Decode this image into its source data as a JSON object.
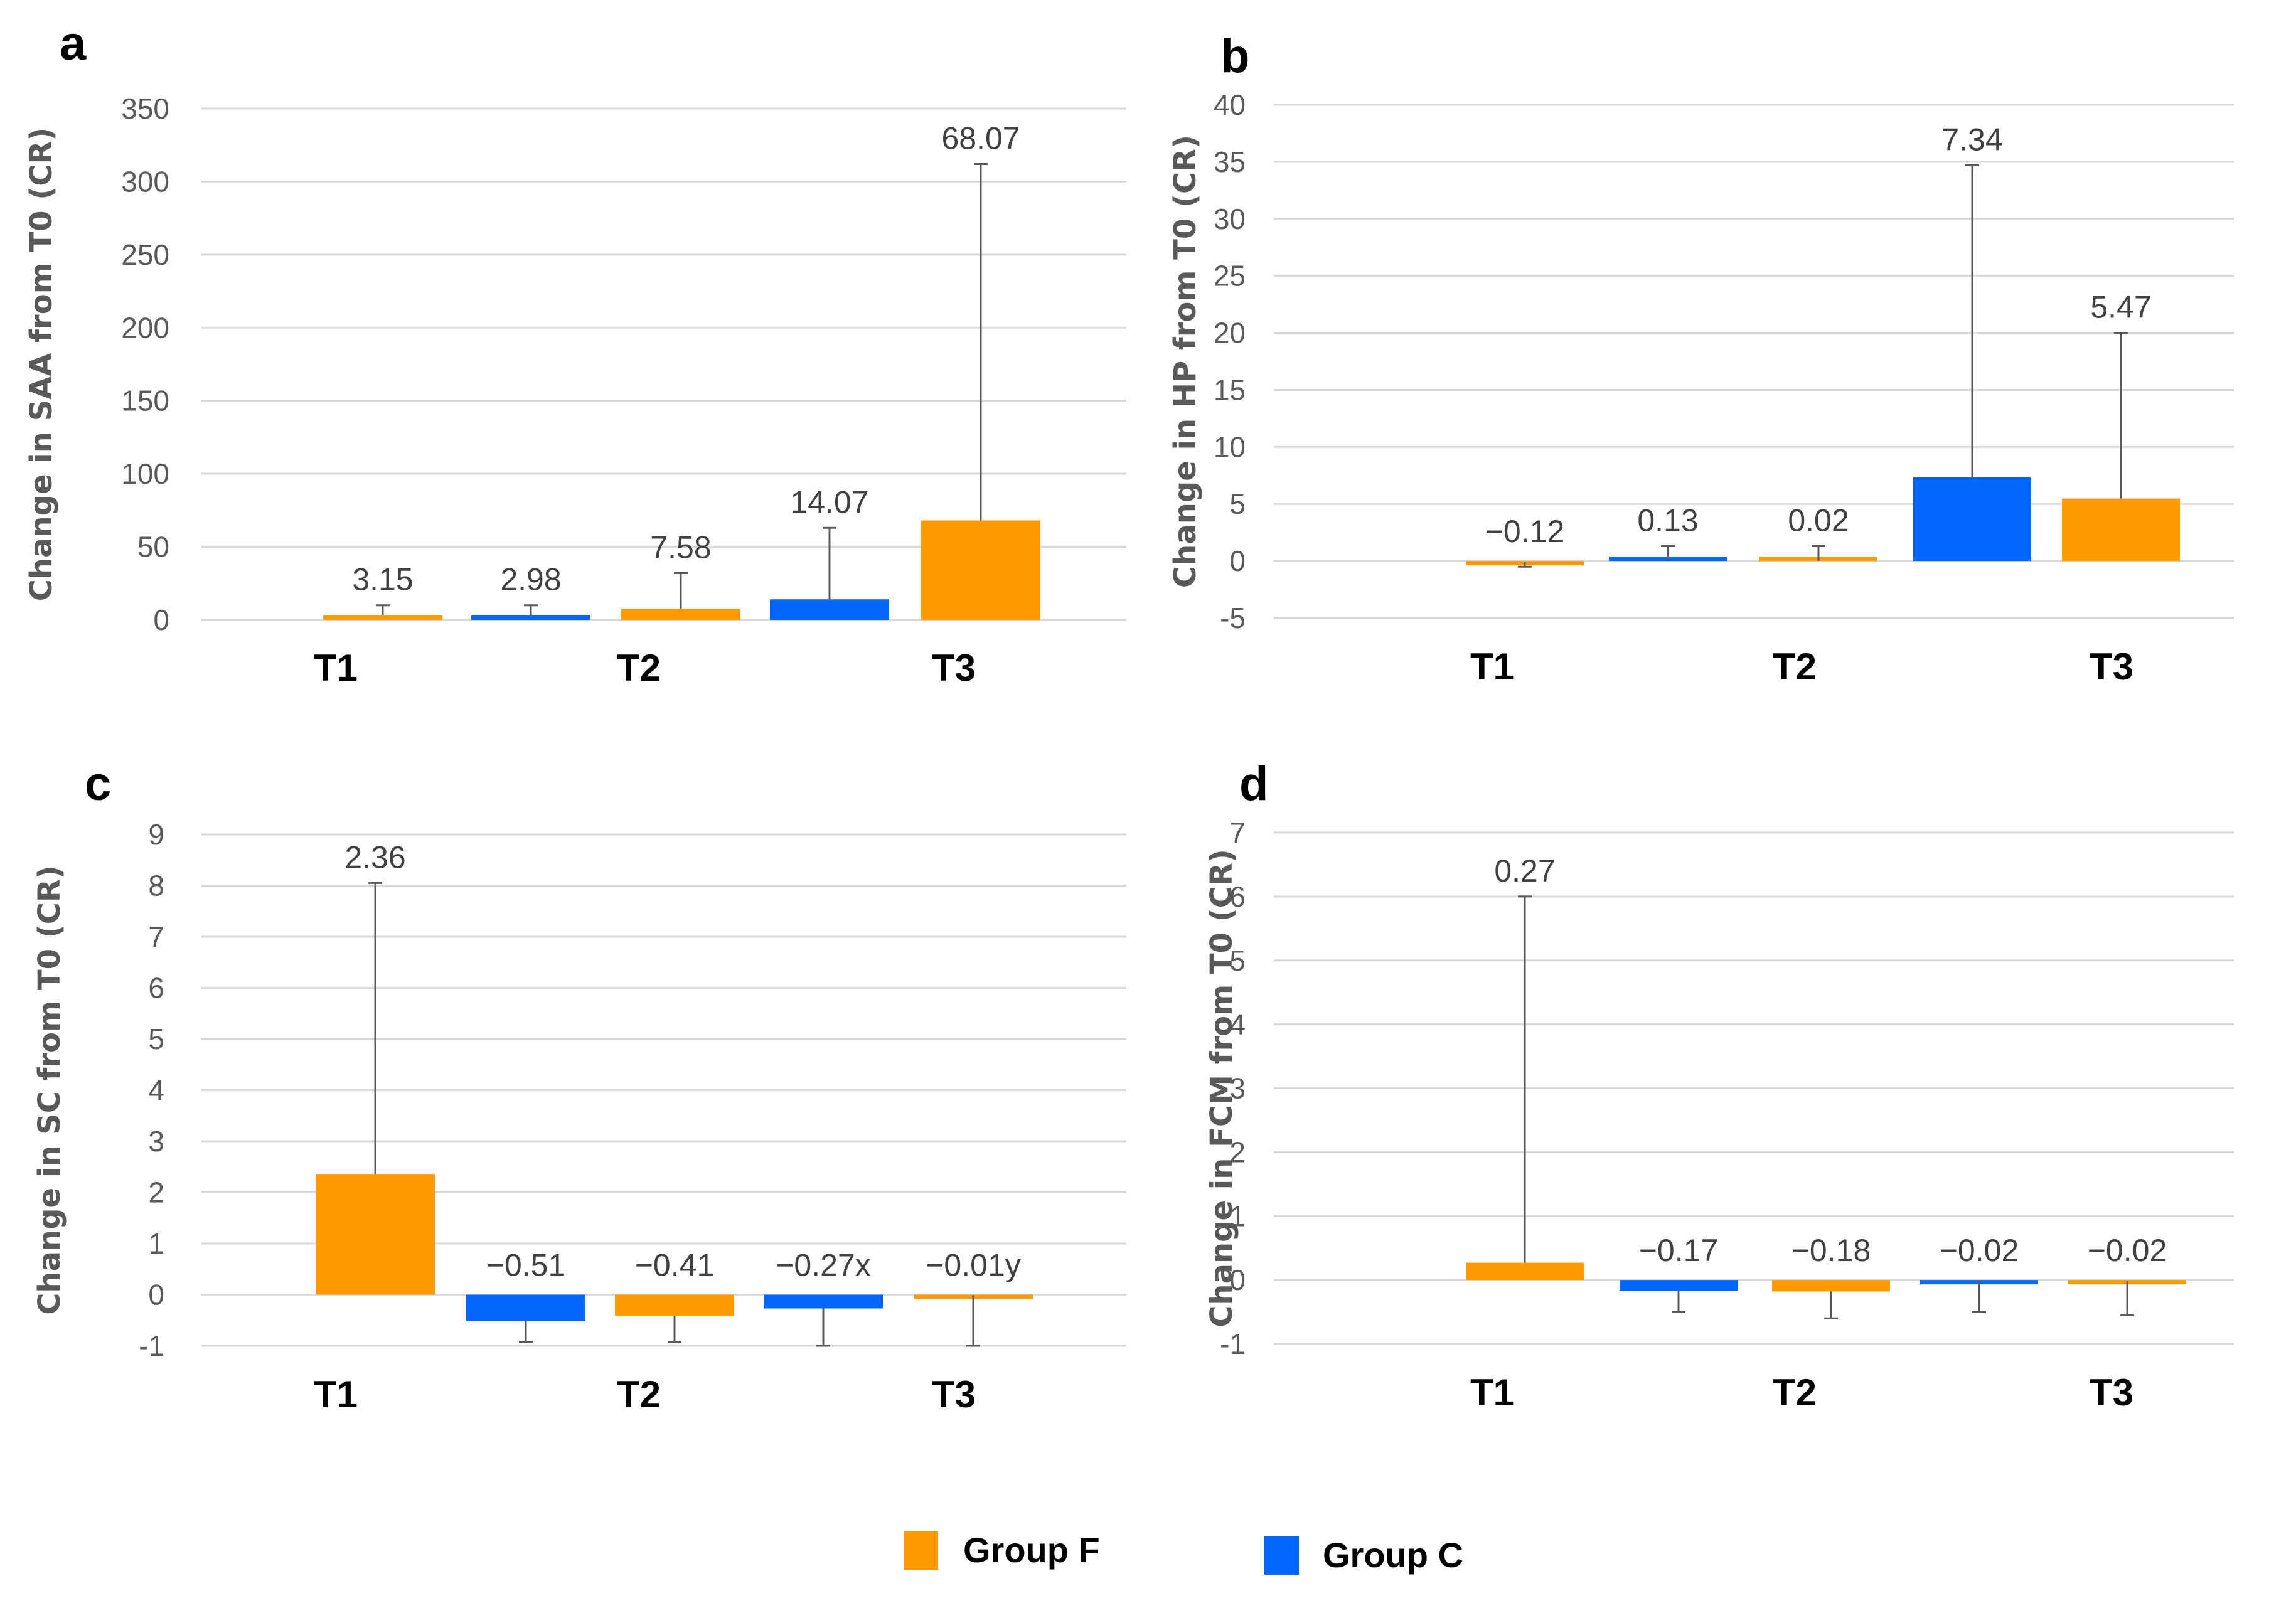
{
  "colors": {
    "group_f": "#ff9900",
    "group_c": "#0066ff"
  },
  "legend": [
    {
      "name": "Group F",
      "color": "#ff9900"
    },
    {
      "name": "Group C",
      "color": "#0066ff"
    }
  ],
  "chart_data": [
    {
      "panel": "a",
      "type": "bar",
      "ylabel": "Change in SAA from T0  (CR)",
      "categories": [
        "T1",
        "T2",
        "T3"
      ],
      "yticks": [
        0,
        50,
        100,
        150,
        200,
        250,
        300,
        350
      ],
      "ylim": [
        0,
        350
      ],
      "bars": [
        {
          "category": "T1",
          "group": "Group F",
          "value": 3.15,
          "error_upper": 10,
          "label": "3.15"
        },
        {
          "category": "T2",
          "group": "Group C",
          "value": 2.98,
          "error_upper": 10,
          "label": "2.98"
        },
        {
          "category": "T2",
          "group": "Group F",
          "value": 7.58,
          "error_upper": 32,
          "label": "7.58"
        },
        {
          "category": "T3",
          "group": "Group C",
          "value": 14.07,
          "error_upper": 63,
          "label": "14.07"
        },
        {
          "category": "T3",
          "group": "Group F",
          "value": 68.07,
          "error_upper": 312,
          "label": "68.07"
        }
      ]
    },
    {
      "panel": "b",
      "type": "bar",
      "ylabel": "Change in HP from T0 (CR)",
      "categories": [
        "T1",
        "T2",
        "T3"
      ],
      "yticks": [
        -5,
        0,
        5,
        10,
        15,
        20,
        25,
        30,
        35,
        40
      ],
      "ylim": [
        -5,
        40
      ],
      "bars": [
        {
          "category": "T1",
          "group": "Group F",
          "value": -0.12,
          "error_lower": -0.5,
          "label": "−0.12"
        },
        {
          "category": "T2",
          "group": "Group C",
          "value": 0.13,
          "error_upper": 1.3,
          "label": "0.13"
        },
        {
          "category": "T2",
          "group": "Group F",
          "value": 0.02,
          "error_upper": 1.3,
          "label": "0.02"
        },
        {
          "category": "T3",
          "group": "Group C",
          "value": 7.34,
          "error_upper": 34.7,
          "label": "7.34"
        },
        {
          "category": "T3",
          "group": "Group F",
          "value": 5.47,
          "error_upper": 20,
          "label": "5.47"
        }
      ]
    },
    {
      "panel": "c",
      "type": "bar",
      "ylabel": "Change in SC from T0 (CR)",
      "categories": [
        "T1",
        "T2",
        "T3"
      ],
      "yticks": [
        -1,
        0,
        1,
        2,
        3,
        4,
        5,
        6,
        7,
        8,
        9
      ],
      "ylim": [
        -1,
        9
      ],
      "bars": [
        {
          "category": "T1",
          "group": "Group F",
          "value": 2.36,
          "error_upper": 8.05,
          "label": "2.36"
        },
        {
          "category": "T2",
          "group": "Group C",
          "value": -0.51,
          "error_lower": -0.92,
          "label": "−0.51"
        },
        {
          "category": "T2",
          "group": "Group F",
          "value": -0.41,
          "error_lower": -0.92,
          "label": "−0.41"
        },
        {
          "category": "T3",
          "group": "Group C",
          "value": -0.27,
          "error_lower": -1.0,
          "label": "−0.27x"
        },
        {
          "category": "T3",
          "group": "Group F",
          "value": -0.01,
          "error_lower": -1.0,
          "label": "−0.01y"
        }
      ]
    },
    {
      "panel": "d",
      "type": "bar",
      "ylabel": "Change in FCM from T0 (CR)",
      "categories": [
        "T1",
        "T2",
        "T3"
      ],
      "yticks": [
        -1,
        0,
        1,
        2,
        3,
        4,
        5,
        6,
        7
      ],
      "ylim": [
        -1,
        7
      ],
      "bars": [
        {
          "category": "T1",
          "group": "Group F",
          "value": 0.27,
          "error_upper": 6.0,
          "label": "0.27"
        },
        {
          "category": "T2",
          "group": "Group C",
          "value": -0.17,
          "error_lower": -0.5,
          "label": "−0.17"
        },
        {
          "category": "T2",
          "group": "Group F",
          "value": -0.18,
          "error_lower": -0.6,
          "label": "−0.18"
        },
        {
          "category": "T3",
          "group": "Group C",
          "value": -0.02,
          "error_lower": -0.5,
          "label": "−0.02"
        },
        {
          "category": "T3",
          "group": "Group F",
          "value": -0.02,
          "error_lower": -0.55,
          "label": "−0.02"
        }
      ]
    }
  ]
}
